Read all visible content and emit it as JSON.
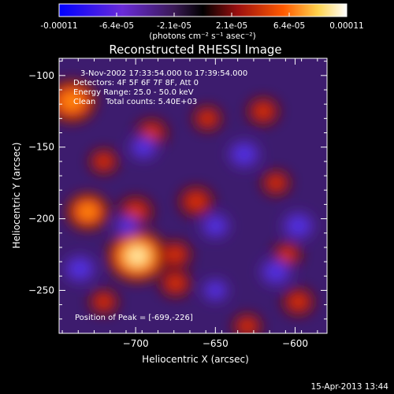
{
  "colorbar": {
    "tick_labels": [
      "-0.00011",
      "-6.4e-05",
      "-2.1e-05",
      "2.1e-05",
      "6.4e-05",
      "0.00011"
    ],
    "unit_label": "(photons cm⁻² s⁻¹ asec⁻²)",
    "colors": [
      "#0000ff",
      "#6a2bd8",
      "#3a1a55",
      "#000000",
      "#9b0f0f",
      "#ff5a00",
      "#ffd34d",
      "#ffffff"
    ]
  },
  "info": {
    "time_range": "3-Nov-2002 17:33:54.000 to 17:39:54.000",
    "detectors": "Detectors: 4F 5F 6F 7F 8F, Att 0",
    "energy_range": "Energy Range: 25.0 - 50.0 keV",
    "clean_counts": "Clean    Total counts: 5.40E+03",
    "peak_position": "Position of Peak = [-699,-226]"
  },
  "footer": {
    "timestamp": "15-Apr-2013 13:44"
  },
  "chart_data": {
    "type": "heatmap",
    "title": "Reconstructed RHESSI Image",
    "xlabel": "Heliocentric X (arcsec)",
    "ylabel": "Heliocentric Y (arcsec)",
    "xlim": [
      -748,
      -580
    ],
    "ylim": [
      -280,
      -88
    ],
    "xticks": [
      -700,
      -650,
      -600
    ],
    "yticks": [
      -100,
      -150,
      -200,
      -250
    ],
    "peak": [
      -699,
      -226
    ],
    "intensity_range": [
      -0.00011,
      0.00011
    ],
    "sources": [
      {
        "x": -699,
        "y": -226,
        "value": 0.00011
      },
      {
        "x": -740,
        "y": -118,
        "value": 8e-05
      },
      {
        "x": -730,
        "y": -195,
        "value": 6e-05
      },
      {
        "x": -700,
        "y": -195,
        "value": 5e-05
      },
      {
        "x": -662,
        "y": -188,
        "value": 5e-05
      },
      {
        "x": -675,
        "y": -225,
        "value": 4e-05
      },
      {
        "x": -675,
        "y": -245,
        "value": 4e-05
      },
      {
        "x": -690,
        "y": -140,
        "value": 4e-05
      },
      {
        "x": -655,
        "y": -130,
        "value": 3e-05
      },
      {
        "x": -620,
        "y": -125,
        "value": 4e-05
      },
      {
        "x": -612,
        "y": -175,
        "value": 3e-05
      },
      {
        "x": -598,
        "y": -258,
        "value": 4e-05
      },
      {
        "x": -605,
        "y": -225,
        "value": 3e-05
      },
      {
        "x": -720,
        "y": -160,
        "value": 3e-05
      },
      {
        "x": -720,
        "y": -258,
        "value": 3e-05
      },
      {
        "x": -630,
        "y": -275,
        "value": 3e-05
      },
      {
        "x": -650,
        "y": -205,
        "value": -4e-05
      },
      {
        "x": -598,
        "y": -205,
        "value": -5e-05
      },
      {
        "x": -612,
        "y": -237,
        "value": -5e-05
      },
      {
        "x": -632,
        "y": -155,
        "value": -5e-05
      },
      {
        "x": -695,
        "y": -150,
        "value": -4e-05
      },
      {
        "x": -735,
        "y": -235,
        "value": -5e-05
      },
      {
        "x": -705,
        "y": -205,
        "value": -3e-05
      },
      {
        "x": -650,
        "y": -250,
        "value": -3e-05
      }
    ]
  }
}
